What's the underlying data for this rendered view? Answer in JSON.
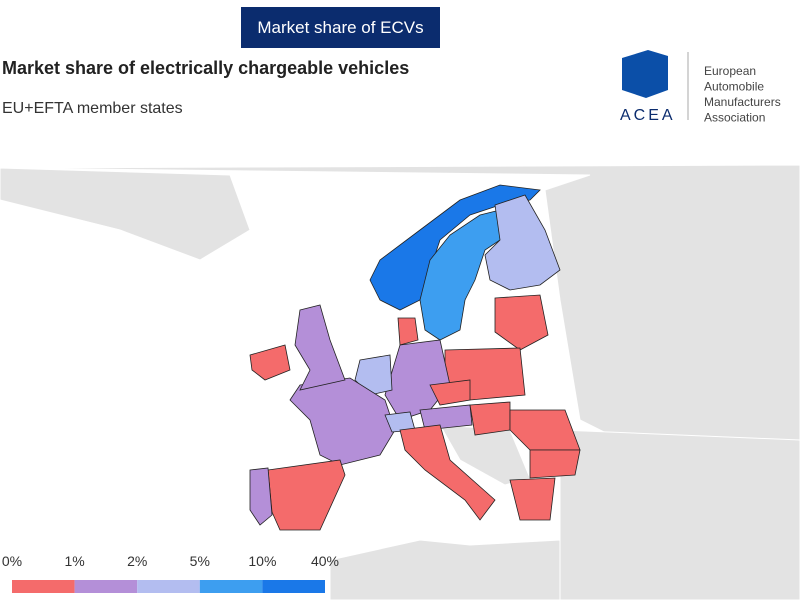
{
  "header": {
    "tab": "Market share of ECVs",
    "title": "Market share of electrically chargeable vehicles",
    "subtitle": "EU+EFTA member states"
  },
  "logo": {
    "acronym": "ACEA",
    "lines": [
      "European",
      "Automobile",
      "Manufacturers",
      "Association"
    ]
  },
  "legend": {
    "ticks": [
      {
        "value": 0,
        "label": "0%"
      },
      {
        "value": 1,
        "label": "1%"
      },
      {
        "value": 2,
        "label": "2%"
      },
      {
        "value": 5,
        "label": "5%"
      },
      {
        "value": 10,
        "label": "10%"
      },
      {
        "value": 40,
        "label": "40%"
      }
    ],
    "colors": [
      "#f46b6b",
      "#b48fd8",
      "#b3bdf0",
      "#3d9ef0",
      "#1a78e8"
    ]
  }
}
